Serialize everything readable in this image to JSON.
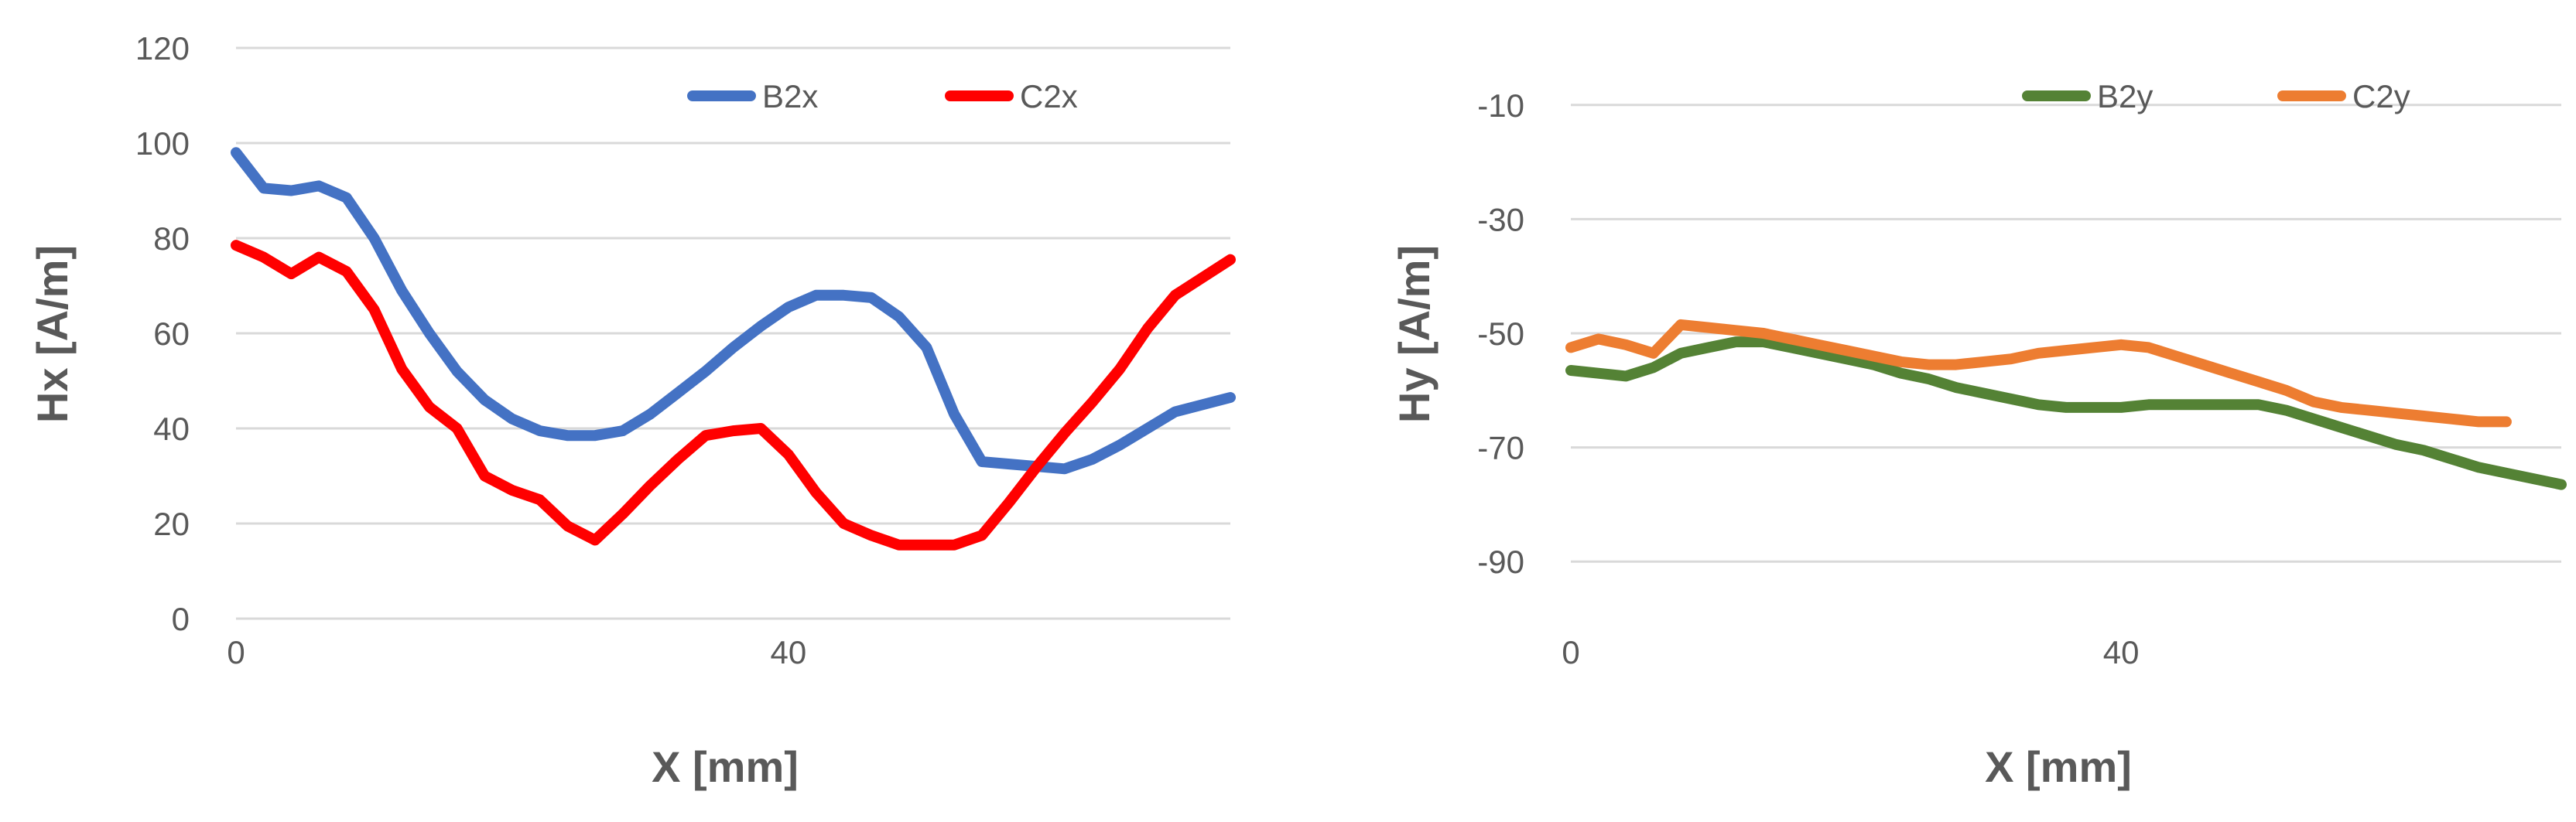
{
  "chart_data": [
    {
      "type": "line",
      "title": "",
      "xlabel": "X [mm]",
      "ylabel": "Hx [A/m]",
      "xlim": [
        0,
        72
      ],
      "ylim": [
        0,
        120
      ],
      "x_ticks": [
        "0",
        "40"
      ],
      "y_ticks": [
        "0",
        "20",
        "40",
        "60",
        "80",
        "100",
        "120"
      ],
      "grid": "horizontal",
      "legend_position": "top-right",
      "series": [
        {
          "name": "B2x",
          "color": "#4472C4",
          "x": [
            0,
            2,
            4,
            6,
            8,
            10,
            12,
            14,
            16,
            18,
            20,
            22,
            24,
            26,
            28,
            30,
            32,
            34,
            36,
            38,
            40,
            42,
            44,
            46,
            48,
            50,
            52,
            54,
            56,
            58,
            60,
            62,
            64,
            66,
            68,
            72
          ],
          "values": [
            98,
            90.5,
            90,
            91,
            88.5,
            80,
            69,
            60,
            52,
            46,
            42,
            39.5,
            38.5,
            38.5,
            39.5,
            43,
            47.5,
            52,
            57,
            61.5,
            65.5,
            68,
            68,
            67.5,
            63.5,
            57,
            43,
            33,
            32.5,
            32,
            31.5,
            33.5,
            36.5,
            40,
            43.5,
            46.5
          ]
        },
        {
          "name": "C2x",
          "color": "#FF0000",
          "x": [
            0,
            2,
            4,
            6,
            8,
            10,
            12,
            14,
            16,
            18,
            20,
            22,
            24,
            26,
            28,
            30,
            32,
            34,
            36,
            38,
            40,
            42,
            44,
            46,
            48,
            50,
            52,
            54,
            56,
            58,
            60,
            62,
            64,
            66,
            68,
            72
          ],
          "values": [
            78.5,
            76,
            72.5,
            76,
            73,
            65,
            52.5,
            44.5,
            40,
            30,
            27,
            25,
            19.5,
            16.5,
            22,
            28,
            33.5,
            38.5,
            39.5,
            40,
            34.5,
            26.5,
            20,
            17.5,
            15.5,
            15.5,
            15.5,
            17.5,
            24.5,
            32,
            39,
            45.5,
            52.5,
            61,
            68,
            75.5
          ]
        }
      ]
    },
    {
      "type": "line",
      "title": "",
      "xlabel": "X [mm]",
      "ylabel": "Hy [A/m]",
      "xlim": [
        0,
        72
      ],
      "ylim": [
        -100,
        0
      ],
      "x_ticks": [
        "0",
        "40"
      ],
      "y_ticks": [
        "-10",
        "-30",
        "-50",
        "-70",
        "-90"
      ],
      "grid": "horizontal",
      "legend_position": "top-right",
      "series": [
        {
          "name": "B2y",
          "color": "#548235",
          "x": [
            0,
            2,
            4,
            6,
            8,
            10,
            12,
            14,
            16,
            18,
            20,
            22,
            24,
            26,
            28,
            30,
            32,
            34,
            36,
            38,
            40,
            42,
            44,
            46,
            48,
            50,
            52,
            54,
            56,
            58,
            60,
            62,
            64,
            66,
            68,
            72
          ],
          "values": [
            -56.5,
            -57,
            -57.5,
            -56,
            -53.5,
            -52.5,
            -51.5,
            -51.5,
            -52.5,
            -53.5,
            -54.5,
            -55.5,
            -57,
            -58,
            -59.5,
            -60.5,
            -61.5,
            -62.5,
            -63,
            -63,
            -63,
            -62.5,
            -62.5,
            -62.5,
            -62.5,
            -62.5,
            -63.5,
            -65,
            -66.5,
            -68,
            -69.5,
            -70.5,
            -72,
            -73.5,
            -74.5,
            -76.5
          ]
        },
        {
          "name": "C2y",
          "color": "#ED7D31",
          "x": [
            0,
            2,
            4,
            6,
            8,
            10,
            12,
            14,
            16,
            18,
            20,
            22,
            24,
            26,
            28,
            30,
            32,
            34,
            36,
            38,
            40,
            42,
            44,
            46,
            48,
            50,
            52,
            54,
            56,
            58,
            60,
            62,
            64,
            66,
            68
          ],
          "values": [
            -52.5,
            -51,
            -52,
            -53.5,
            -48.5,
            -49,
            -49.5,
            -50,
            -51,
            -52,
            -53,
            -54,
            -55,
            -55.5,
            -55.5,
            -55,
            -54.5,
            -53.5,
            -53,
            -52.5,
            -52,
            -52.5,
            -54,
            -55.5,
            -57,
            -58.5,
            -60,
            -62,
            -63,
            -63.5,
            -64,
            -64.5,
            -65,
            -65.5,
            -65.5
          ]
        }
      ]
    }
  ]
}
